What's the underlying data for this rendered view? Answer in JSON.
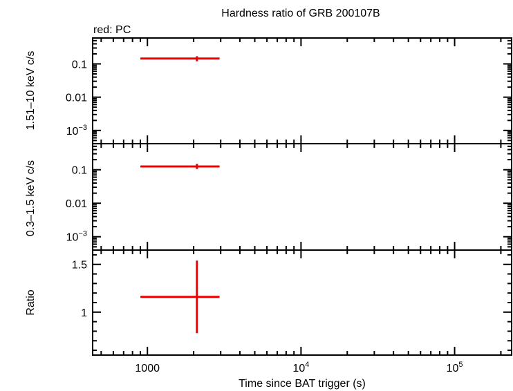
{
  "title": "Hardness ratio of GRB 200107B",
  "legend_note": "red: PC",
  "colors": {
    "series": "#ee0000",
    "axes": "#000000"
  },
  "chart_data": [
    {
      "panel": "hard",
      "type": "scatter",
      "ylabel": "1.51–10 keV c/s",
      "yscale": "log",
      "ylim": [
        0.0004,
        0.6
      ],
      "yticks": [
        {
          "v": 0.1,
          "label": "0.1"
        },
        {
          "v": 0.01,
          "label": "0.01"
        },
        {
          "v": 0.001,
          "label": "10",
          "sup": "−3"
        }
      ],
      "series": [
        {
          "points": [
            {
              "x": 2100,
              "xlo": 900,
              "xhi": 2950,
              "y": 0.145,
              "ylo": 0.12,
              "yhi": 0.17
            }
          ]
        }
      ]
    },
    {
      "panel": "soft",
      "type": "scatter",
      "ylabel": "0.3–1.5 keV c/s",
      "yscale": "log",
      "ylim": [
        0.0004,
        0.6
      ],
      "yticks": [
        {
          "v": 0.1,
          "label": "0.1"
        },
        {
          "v": 0.01,
          "label": "0.01"
        },
        {
          "v": 0.001,
          "label": "10",
          "sup": "−3"
        }
      ],
      "series": [
        {
          "points": [
            {
              "x": 2100,
              "xlo": 900,
              "xhi": 2950,
              "y": 0.125,
              "ylo": 0.105,
              "yhi": 0.15
            }
          ]
        }
      ]
    },
    {
      "panel": "ratio",
      "type": "scatter",
      "ylabel": "Ratio",
      "yscale": "linear",
      "ylim": [
        0.55,
        1.65
      ],
      "yticks": [
        {
          "v": 1.5,
          "label": "1.5"
        },
        {
          "v": 1,
          "label": "1"
        }
      ],
      "series": [
        {
          "points": [
            {
              "x": 2100,
              "xlo": 900,
              "xhi": 2950,
              "y": 1.16,
              "ylo": 0.78,
              "yhi": 1.54
            }
          ]
        }
      ]
    }
  ],
  "xaxis": {
    "label": "Time since BAT trigger (s)",
    "scale": "log",
    "xlim": [
      440,
      235000
    ],
    "ticks": [
      {
        "v": 1000,
        "label": "1000"
      },
      {
        "v": 10000,
        "label": "10",
        "sup": "4"
      },
      {
        "v": 100000,
        "label": "10",
        "sup": "5"
      }
    ]
  }
}
